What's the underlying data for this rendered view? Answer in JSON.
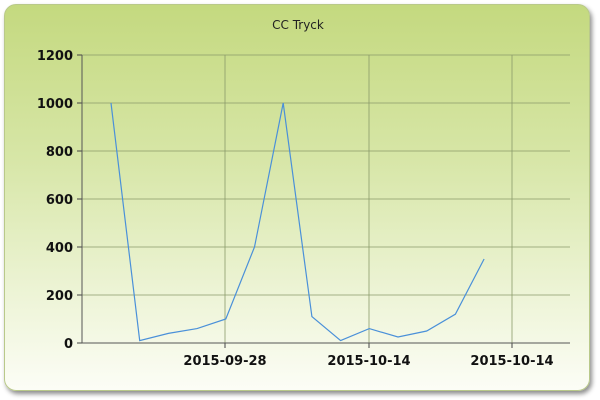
{
  "chart_data": {
    "type": "line",
    "title": "CC Tryck",
    "xlabel": "",
    "ylabel": "",
    "ylim": [
      0,
      1200
    ],
    "yticks": [
      "0",
      "200",
      "400",
      "600",
      "800",
      "1000",
      "1200"
    ],
    "xtick_labels": [
      "2015-09-28",
      "2015-10-14",
      "2015-10-14"
    ],
    "grid": true,
    "legend": "none",
    "line_color": "#4a90d9",
    "series": [
      {
        "values": [
          1000,
          10,
          40,
          60,
          100,
          400,
          1000,
          110,
          10,
          60,
          25,
          50,
          120,
          350
        ]
      }
    ]
  }
}
